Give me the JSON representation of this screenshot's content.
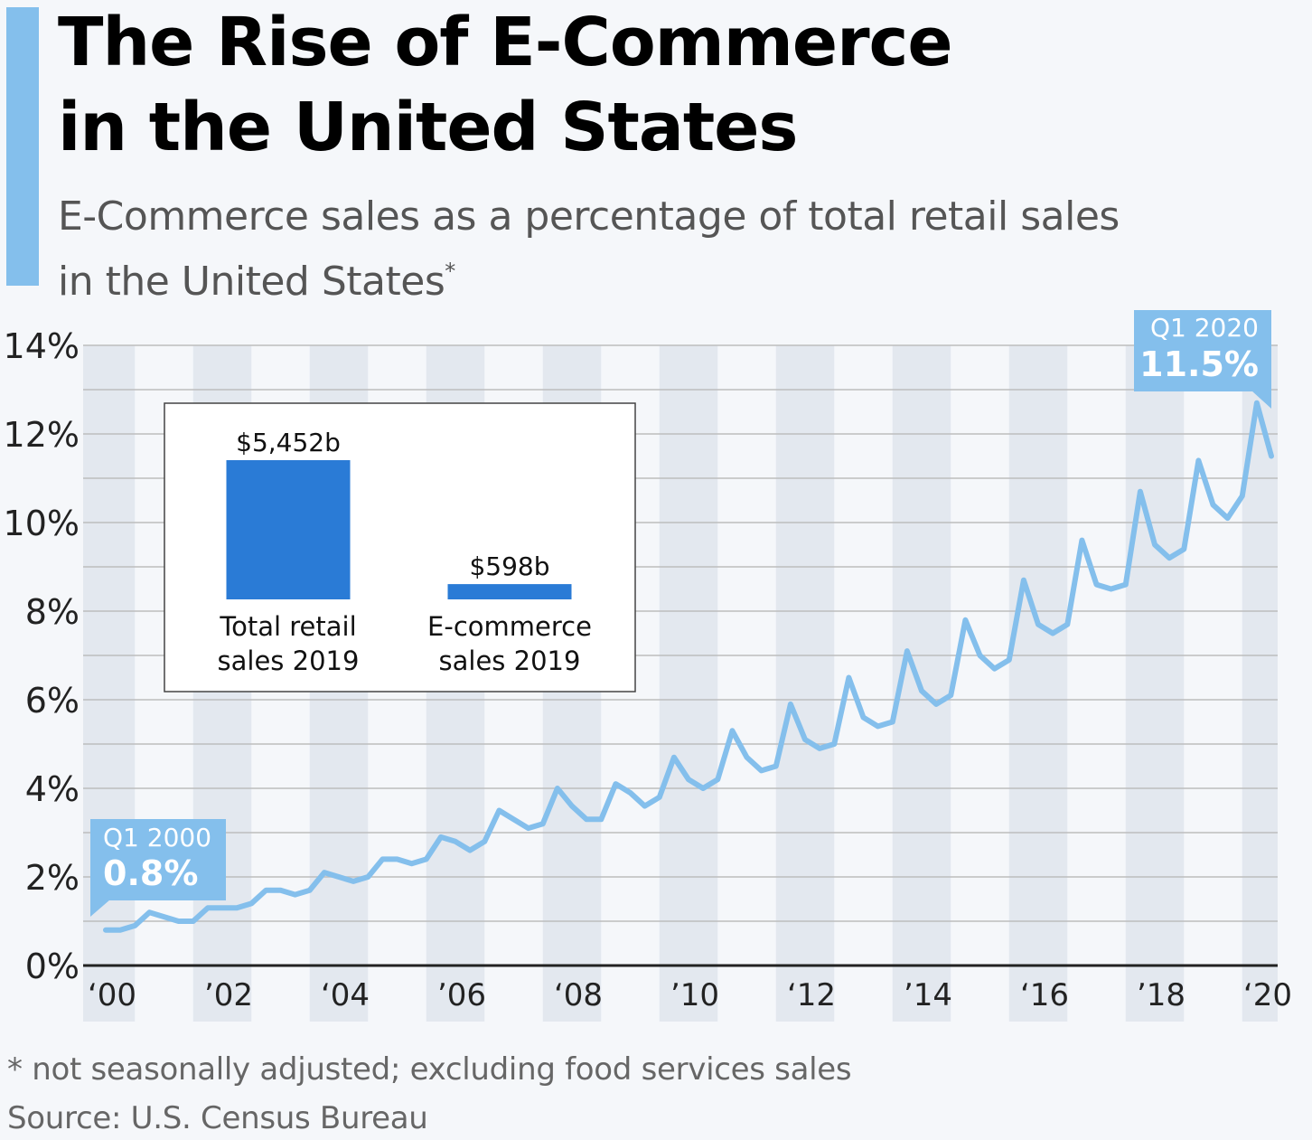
{
  "header": {
    "title_line1": "The Rise of E-Commerce",
    "title_line2": "in the United States",
    "subtitle_line1": "E-Commerce sales as a percentage of total retail sales",
    "subtitle_line2": "in the United States",
    "subtitle_mark": "*"
  },
  "footer": {
    "footnote": "* not seasonally adjusted; excluding food services sales",
    "source": "Source: U.S. Census Bureau"
  },
  "colors": {
    "line": "#84bfec",
    "accent": "#84bfec",
    "inset_bar": "#2a7bd6",
    "grid": "#bdbdbd",
    "band": "#e3e8ef"
  },
  "chart_data": [
    {
      "type": "line",
      "ylabel": "",
      "xlabel": "",
      "ylim": [
        0,
        14
      ],
      "yticks": [
        0,
        2,
        4,
        6,
        8,
        10,
        12,
        14
      ],
      "ytick_labels": [
        "0%",
        "2%",
        "4%",
        "6%",
        "8%",
        "10%",
        "12%",
        "14%"
      ],
      "xlim": [
        2000,
        2020.25
      ],
      "xticks": [
        2000,
        2002,
        2004,
        2006,
        2008,
        2010,
        2012,
        2014,
        2016,
        2018,
        2020
      ],
      "xtick_labels": [
        "‘00",
        "’02",
        "‘04",
        "’06",
        "‘08",
        "’10",
        "‘12",
        "’14",
        "‘16",
        "’18",
        "‘20"
      ],
      "grid": true,
      "series": [
        {
          "x": [
            2000.0,
            2000.25,
            2000.5,
            2000.75,
            2001.0,
            2001.25,
            2001.5,
            2001.75,
            2002.0,
            2002.25,
            2002.5,
            2002.75,
            2003.0,
            2003.25,
            2003.5,
            2003.75,
            2004.0,
            2004.25,
            2004.5,
            2004.75,
            2005.0,
            2005.25,
            2005.5,
            2005.75,
            2006.0,
            2006.25,
            2006.5,
            2006.75,
            2007.0,
            2007.25,
            2007.5,
            2007.75,
            2008.0,
            2008.25,
            2008.5,
            2008.75,
            2009.0,
            2009.25,
            2009.5,
            2009.75,
            2010.0,
            2010.25,
            2010.5,
            2010.75,
            2011.0,
            2011.25,
            2011.5,
            2011.75,
            2012.0,
            2012.25,
            2012.5,
            2012.75,
            2013.0,
            2013.25,
            2013.5,
            2013.75,
            2014.0,
            2014.25,
            2014.5,
            2014.75,
            2015.0,
            2015.25,
            2015.5,
            2015.75,
            2016.0,
            2016.25,
            2016.5,
            2016.75,
            2017.0,
            2017.25,
            2017.5,
            2017.75,
            2018.0,
            2018.25,
            2018.5,
            2018.75,
            2019.0,
            2019.25,
            2019.5,
            2019.75,
            2020.0
          ],
          "values": [
            0.8,
            0.8,
            0.9,
            1.2,
            1.1,
            1.0,
            1.0,
            1.3,
            1.3,
            1.3,
            1.4,
            1.7,
            1.7,
            1.6,
            1.7,
            2.1,
            2.0,
            1.9,
            2.0,
            2.4,
            2.4,
            2.3,
            2.4,
            2.9,
            2.8,
            2.6,
            2.8,
            3.5,
            3.3,
            3.1,
            3.2,
            4.0,
            3.6,
            3.3,
            3.3,
            4.1,
            3.9,
            3.6,
            3.8,
            4.7,
            4.2,
            4.0,
            4.2,
            5.3,
            4.7,
            4.4,
            4.5,
            5.9,
            5.1,
            4.9,
            5.0,
            6.5,
            5.6,
            5.4,
            5.5,
            7.1,
            6.2,
            5.9,
            6.1,
            7.8,
            7.0,
            6.7,
            6.9,
            8.7,
            7.7,
            7.5,
            7.7,
            9.6,
            8.6,
            8.5,
            8.6,
            10.7,
            9.5,
            9.2,
            9.4,
            11.4,
            10.4,
            10.1,
            10.6,
            12.7,
            11.5
          ]
        }
      ],
      "annotations": [
        {
          "period": "Q1 2000",
          "value_label": "0.8%",
          "x": 2000.0,
          "y": 0.8
        },
        {
          "period": "Q1 2020",
          "value_label": "11.5%",
          "x": 2020.0,
          "y": 11.5
        }
      ]
    },
    {
      "type": "bar",
      "categories": [
        "Total retail sales 2019",
        "E-commerce sales 2019"
      ],
      "category_lines": [
        [
          "Total retail",
          "sales 2019"
        ],
        [
          "E-commerce",
          "sales 2019"
        ]
      ],
      "values": [
        5452,
        598
      ],
      "value_labels": [
        "$5,452b",
        "$598b"
      ]
    }
  ]
}
